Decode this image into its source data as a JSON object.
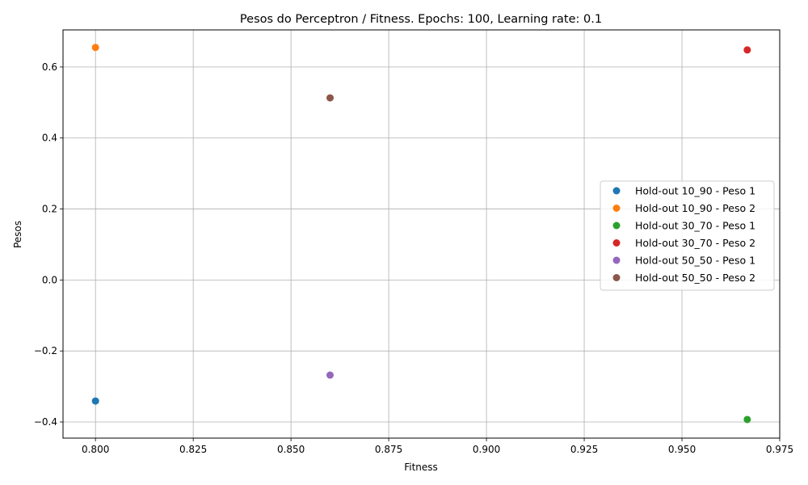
{
  "chart_data": {
    "type": "scatter",
    "title": "Pesos do Perceptron / Fitness. Epochs: 100, Learning rate: 0.1",
    "xlabel": "Fitness",
    "ylabel": "Pesos",
    "xlim": [
      0.7917,
      0.975
    ],
    "ylim": [
      -0.4455,
      0.7045
    ],
    "xticks": [
      0.8,
      0.825,
      0.85,
      0.875,
      0.9,
      0.925,
      0.95,
      0.975
    ],
    "xtick_labels": [
      "0.800",
      "0.825",
      "0.850",
      "0.875",
      "0.900",
      "0.925",
      "0.950",
      "0.975"
    ],
    "yticks": [
      -0.4,
      -0.2,
      0.0,
      0.2,
      0.4,
      0.6
    ],
    "ytick_labels": [
      "−0.4",
      "−0.2",
      "0.0",
      "0.2",
      "0.4",
      "0.6"
    ],
    "grid": true,
    "legend_position": "center-right",
    "series": [
      {
        "name": "Hold-out 10_90 - Peso 1",
        "color": "#1f77b4",
        "x": [
          0.8
        ],
        "y": [
          -0.341
        ]
      },
      {
        "name": "Hold-out 10_90 - Peso 2",
        "color": "#ff7f0e",
        "x": [
          0.8
        ],
        "y": [
          0.655
        ]
      },
      {
        "name": "Hold-out 30_70 - Peso 1",
        "color": "#2ca02c",
        "x": [
          0.9667
        ],
        "y": [
          -0.393
        ]
      },
      {
        "name": "Hold-out 30_70 - Peso 2",
        "color": "#d62728",
        "x": [
          0.9667
        ],
        "y": [
          0.648
        ]
      },
      {
        "name": "Hold-out 50_50 - Peso 1",
        "color": "#9467bd",
        "x": [
          0.86
        ],
        "y": [
          -0.268
        ]
      },
      {
        "name": "Hold-out 50_50 - Peso 2",
        "color": "#8c564b",
        "x": [
          0.86
        ],
        "y": [
          0.513
        ]
      }
    ]
  }
}
